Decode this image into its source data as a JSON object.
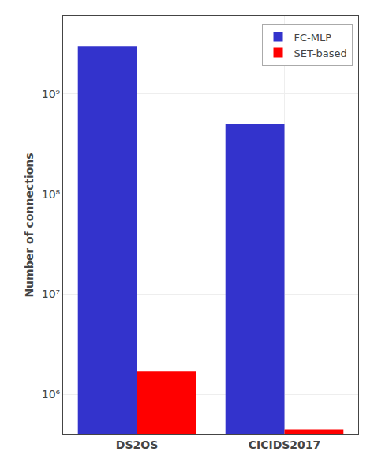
{
  "chart_data": {
    "type": "bar",
    "categories": [
      "DS2OS",
      "CICIDS2017"
    ],
    "series": [
      {
        "name": "FC-MLP",
        "color": "#3333cc",
        "values": [
          3000000000,
          500000000
        ]
      },
      {
        "name": "SET-based",
        "color": "#ff0000",
        "values": [
          1700000,
          450000
        ]
      }
    ],
    "y_label": "Number of connections",
    "log": "y",
    "ylim": [
      400000,
      6000000000
    ],
    "yticks": [
      {
        "value": 1000000,
        "label": "10⁶"
      },
      {
        "value": 10000000,
        "label": "10⁷"
      },
      {
        "value": 100000000,
        "label": "10⁸"
      },
      {
        "value": 1000000000,
        "label": "10⁹"
      }
    ],
    "grid": true,
    "legend": "upper right"
  }
}
